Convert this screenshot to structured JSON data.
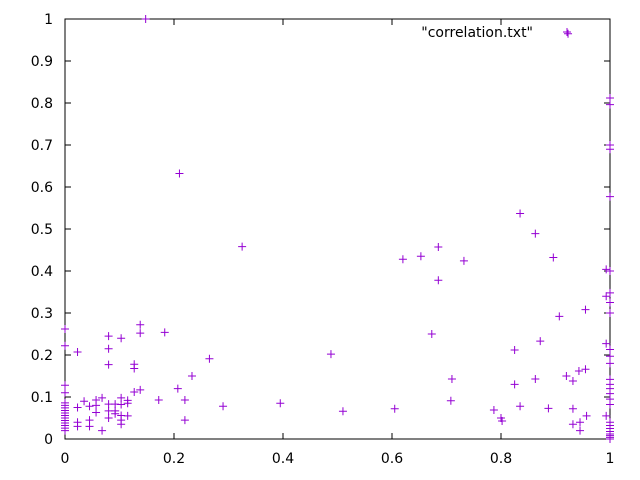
{
  "chart_data": {
    "type": "scatter",
    "marker": "plus",
    "marker_color": "#9400d3",
    "xlim": [
      0,
      1
    ],
    "ylim": [
      0,
      1
    ],
    "x_ticks": [
      "0",
      "0.2",
      "0.4",
      "0.6",
      "0.8",
      "1"
    ],
    "y_ticks": [
      "0",
      "0.1",
      "0.2",
      "0.3",
      "0.4",
      "0.5",
      "0.6",
      "0.7",
      "0.8",
      "0.9",
      "1"
    ],
    "grid": false,
    "legend_position": "top-right",
    "series": [
      {
        "name": "\"correlation.txt\"",
        "color": "#9400d3",
        "points": [
          [
            0.148,
            1.0
          ],
          [
            0.923,
            0.965
          ],
          [
            0.21,
            0.632
          ],
          [
            0.325,
            0.458
          ],
          [
            0.835,
            0.537
          ],
          [
            0.863,
            0.489
          ],
          [
            0.685,
            0.457
          ],
          [
            0.896,
            0.432
          ],
          [
            0.62,
            0.428
          ],
          [
            0.653,
            0.435
          ],
          [
            0.732,
            0.424
          ],
          [
            0.685,
            0.378
          ],
          [
            0.673,
            0.25
          ],
          [
            0.872,
            0.233
          ],
          [
            0.907,
            0.292
          ],
          [
            0.955,
            0.308
          ],
          [
            0.488,
            0.202
          ],
          [
            0.825,
            0.212
          ],
          [
            0.71,
            0.143
          ],
          [
            0.92,
            0.15
          ],
          [
            0.932,
            0.138
          ],
          [
            0.943,
            0.162
          ],
          [
            0.955,
            0.166
          ],
          [
            0.825,
            0.13
          ],
          [
            0.863,
            0.143
          ],
          [
            0.708,
            0.091
          ],
          [
            0.787,
            0.069
          ],
          [
            0.8,
            0.05
          ],
          [
            0.802,
            0.043
          ],
          [
            0.835,
            0.078
          ],
          [
            0.887,
            0.073
          ],
          [
            0.932,
            0.072
          ],
          [
            0.932,
            0.035
          ],
          [
            0.945,
            0.04
          ],
          [
            0.945,
            0.02
          ],
          [
            0.957,
            0.055
          ],
          [
            0.605,
            0.072
          ],
          [
            0.51,
            0.066
          ],
          [
            0.395,
            0.085
          ],
          [
            0.29,
            0.078
          ],
          [
            0.233,
            0.15
          ],
          [
            0.265,
            0.191
          ],
          [
            0.207,
            0.12
          ],
          [
            0.22,
            0.093
          ],
          [
            0.22,
            0.045
          ],
          [
            0.183,
            0.254
          ],
          [
            0.138,
            0.272
          ],
          [
            0.138,
            0.252
          ],
          [
            0.08,
            0.245
          ],
          [
            0.103,
            0.24
          ],
          [
            0.08,
            0.215
          ],
          [
            0.08,
            0.177
          ],
          [
            0.127,
            0.178
          ],
          [
            0.127,
            0.168
          ],
          [
            0.138,
            0.117
          ],
          [
            0.127,
            0.112
          ],
          [
            0.172,
            0.093
          ],
          [
            0.023,
            0.207
          ],
          [
            0.035,
            0.09
          ],
          [
            0.023,
            0.075
          ],
          [
            0.023,
            0.04
          ],
          [
            0.023,
            0.03
          ],
          [
            0.045,
            0.078
          ],
          [
            0.045,
            0.045
          ],
          [
            0.045,
            0.03
          ],
          [
            0.057,
            0.093
          ],
          [
            0.057,
            0.08
          ],
          [
            0.057,
            0.063
          ],
          [
            0.068,
            0.098
          ],
          [
            0.068,
            0.02
          ],
          [
            0.08,
            0.083
          ],
          [
            0.08,
            0.067
          ],
          [
            0.08,
            0.05
          ],
          [
            0.092,
            0.083
          ],
          [
            0.092,
            0.067
          ],
          [
            0.092,
            0.06
          ],
          [
            0.103,
            0.098
          ],
          [
            0.103,
            0.082
          ],
          [
            0.103,
            0.056
          ],
          [
            0.103,
            0.045
          ],
          [
            0.103,
            0.035
          ],
          [
            0.115,
            0.092
          ],
          [
            0.115,
            0.085
          ],
          [
            0.115,
            0.055
          ],
          [
            0.0,
            0.262
          ],
          [
            0.0,
            0.222
          ],
          [
            0.0,
            0.128
          ],
          [
            0.0,
            0.11
          ],
          [
            0.0,
            0.086
          ],
          [
            0.0,
            0.08
          ],
          [
            0.0,
            0.074
          ],
          [
            0.0,
            0.068
          ],
          [
            0.0,
            0.062
          ],
          [
            0.0,
            0.056
          ],
          [
            0.0,
            0.05
          ],
          [
            0.0,
            0.044
          ],
          [
            0.0,
            0.038
          ],
          [
            0.0,
            0.032
          ],
          [
            0.0,
            0.026
          ],
          [
            0.0,
            0.02
          ],
          [
            1.0,
            0.812
          ],
          [
            1.0,
            0.796
          ],
          [
            1.0,
            0.7
          ],
          [
            1.0,
            0.69
          ],
          [
            1.0,
            0.577
          ],
          [
            0.993,
            0.404
          ],
          [
            1.0,
            0.4
          ],
          [
            1.0,
            0.348
          ],
          [
            0.993,
            0.34
          ],
          [
            1.0,
            0.325
          ],
          [
            1.0,
            0.3
          ],
          [
            0.993,
            0.227
          ],
          [
            1.0,
            0.213
          ],
          [
            1.0,
            0.197
          ],
          [
            1.0,
            0.18
          ],
          [
            1.0,
            0.142
          ],
          [
            1.0,
            0.13
          ],
          [
            1.0,
            0.12
          ],
          [
            1.0,
            0.108
          ],
          [
            1.0,
            0.095
          ],
          [
            1.0,
            0.082
          ],
          [
            0.993,
            0.055
          ],
          [
            1.0,
            0.04
          ],
          [
            1.0,
            0.032
          ],
          [
            1.0,
            0.025
          ],
          [
            1.0,
            0.018
          ],
          [
            1.0,
            0.012
          ],
          [
            1.0,
            0.008
          ],
          [
            1.0,
            0.004
          ],
          [
            1.0,
            0.0
          ]
        ]
      }
    ]
  }
}
